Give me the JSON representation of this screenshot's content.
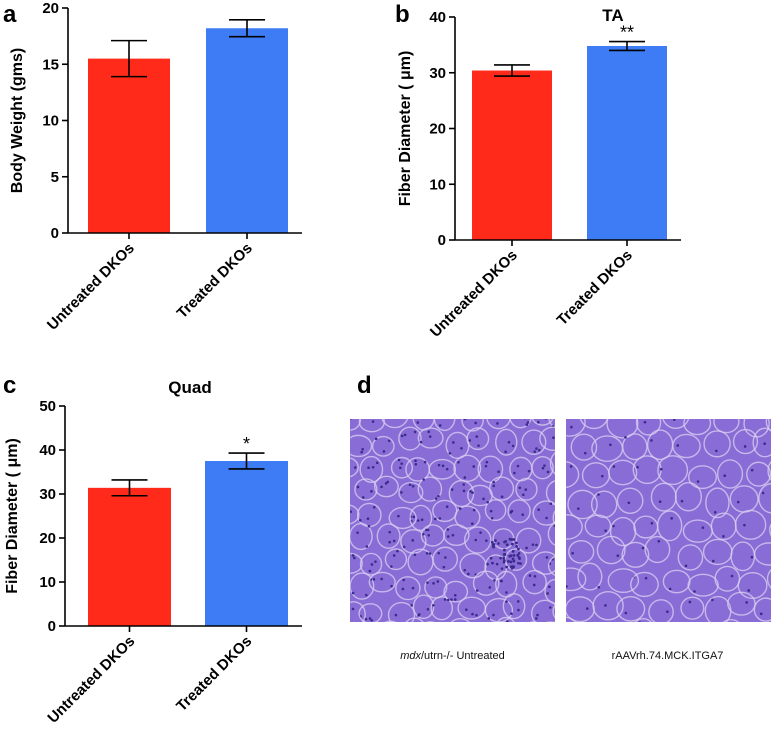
{
  "colors": {
    "untreated": "#ff2a1a",
    "treated": "#3d7cf4",
    "axis": "#000000",
    "tissue_bg": "#8a6cd6",
    "tissue_membrane": "#d9d2f2",
    "tissue_nuclei": "#3a2c8c"
  },
  "chart_data": [
    {
      "panel": "a",
      "type": "bar",
      "title": "",
      "categories": [
        "Untreated DKOs",
        "Treated DKOs"
      ],
      "values": [
        15.5,
        18.2
      ],
      "errors": [
        1.6,
        0.75
      ],
      "significance": [
        "",
        ""
      ],
      "ylabel": "Body  Weight (gms)",
      "xlabel": "",
      "ylim": [
        0,
        20
      ],
      "yticks": [
        0,
        5,
        10,
        15,
        20
      ],
      "grid": false
    },
    {
      "panel": "b",
      "type": "bar",
      "title": "TA",
      "categories": [
        "Untreated DKOs",
        "Treated DKOs"
      ],
      "values": [
        30.4,
        34.8
      ],
      "errors": [
        1.0,
        0.8
      ],
      "significance": [
        "",
        "**"
      ],
      "ylabel": "Fiber Diameter ( μm)",
      "xlabel": "",
      "ylim": [
        0,
        40
      ],
      "yticks": [
        0,
        10,
        20,
        30,
        40
      ],
      "grid": false
    },
    {
      "panel": "c",
      "type": "bar",
      "title": "Quad",
      "categories": [
        "Untreated DKOs",
        "Treated DKOs"
      ],
      "values": [
        31.4,
        37.5
      ],
      "errors": [
        1.8,
        1.8
      ],
      "significance": [
        "",
        "*"
      ],
      "ylabel": "Fiber Diameter ( μm)",
      "xlabel": "",
      "ylim": [
        0,
        50
      ],
      "yticks": [
        0,
        10,
        20,
        30,
        40,
        50
      ],
      "grid": false
    }
  ],
  "panel_d": {
    "label": "d",
    "left_caption_italic": "mdx",
    "left_caption_rest": "/utrn-/- Untreated",
    "right_caption": "rAAVrh.74.MCK.ITGA7"
  }
}
